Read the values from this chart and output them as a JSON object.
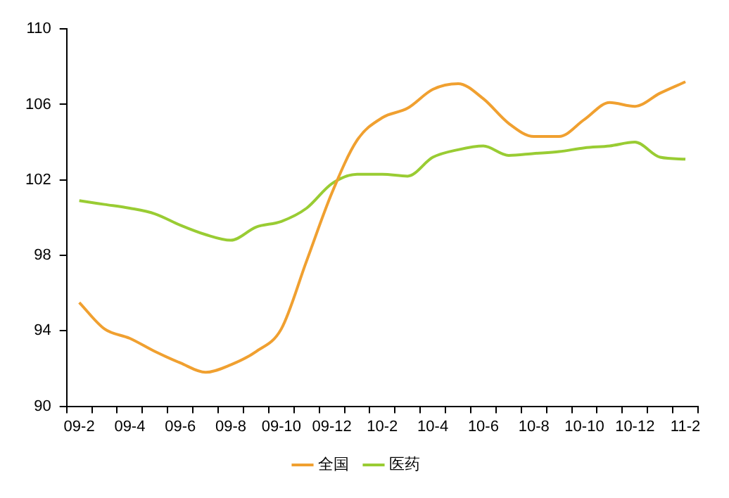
{
  "chart_data": {
    "type": "line",
    "categories": [
      "09-2",
      null,
      "09-4",
      null,
      "09-6",
      null,
      "09-8",
      null,
      "09-10",
      null,
      "09-12",
      null,
      "10-2",
      null,
      "10-4",
      null,
      "10-6",
      null,
      "10-8",
      null,
      "10-10",
      null,
      "10-12",
      null,
      "11-2"
    ],
    "series": [
      {
        "name": "全国",
        "color": "#f0a030",
        "values": [
          95.5,
          94.1,
          93.6,
          92.9,
          92.3,
          91.8,
          92.2,
          92.9,
          94.1,
          97.7,
          101.3,
          104.1,
          105.3,
          105.8,
          106.8,
          107.1,
          106.3,
          105.0,
          104.3,
          104.3,
          105.2,
          106.1,
          105.9,
          106.6,
          107.2
        ]
      },
      {
        "name": "医药",
        "color": "#99cc33",
        "values": [
          100.9,
          100.7,
          100.5,
          100.2,
          99.6,
          99.1,
          98.8,
          99.5,
          99.8,
          100.5,
          101.8,
          102.3,
          102.3,
          102.2,
          103.2,
          103.6,
          103.8,
          103.3,
          103.4,
          103.5,
          103.7,
          103.8,
          104.0,
          103.2,
          103.1
        ]
      }
    ],
    "ylim": [
      90,
      110
    ],
    "yticks": [
      90,
      94,
      98,
      102,
      106,
      110
    ],
    "grid": false,
    "legend": "bottom",
    "marker": "none",
    "line_style": "solid"
  }
}
